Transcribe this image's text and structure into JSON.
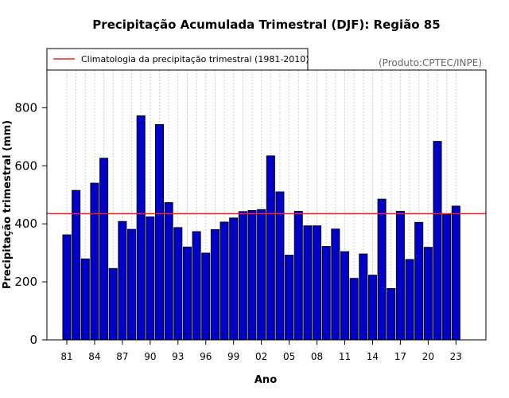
{
  "chart_data": {
    "type": "bar",
    "title": "Precipitação Acumulada Trimestral (DJF): Região 85",
    "xlabel": "Ano",
    "ylabel": "Precipitação trimestral (mm)",
    "source": "(Produto:CPTEC/INPE)",
    "legend": {
      "placement": "top-left",
      "entries": [
        {
          "label": "Climatologia da precipitação trimestral (1981-2010)",
          "color": "#ee2222",
          "style": "line"
        }
      ]
    },
    "ylim": [
      0,
      930
    ],
    "yticks": [
      0,
      200,
      400,
      600,
      800
    ],
    "grid": "vertical-dotted",
    "climatology": 435,
    "bar_color": "#0000cc",
    "line_color": "#ee2222",
    "categories": [
      "81",
      "82",
      "83",
      "84",
      "85",
      "86",
      "87",
      "88",
      "89",
      "90",
      "91",
      "92",
      "93",
      "94",
      "95",
      "96",
      "97",
      "98",
      "99",
      "00",
      "01",
      "02",
      "03",
      "04",
      "05",
      "06",
      "07",
      "08",
      "09",
      "10",
      "11",
      "12",
      "13",
      "14",
      "15",
      "16",
      "17",
      "18",
      "19",
      "20",
      "21",
      "22",
      "23"
    ],
    "tick_labels": [
      "81",
      "84",
      "87",
      "90",
      "93",
      "96",
      "99",
      "02",
      "05",
      "08",
      "11",
      "14",
      "17",
      "20",
      "23"
    ],
    "values": [
      362,
      515,
      279,
      540,
      626,
      246,
      408,
      381,
      772,
      424,
      742,
      473,
      387,
      320,
      373,
      299,
      380,
      406,
      420,
      442,
      446,
      449,
      634,
      510,
      292,
      443,
      393,
      393,
      322,
      382,
      304,
      212,
      296,
      223,
      485,
      177,
      443,
      277,
      405,
      319,
      684,
      433,
      461
    ]
  }
}
